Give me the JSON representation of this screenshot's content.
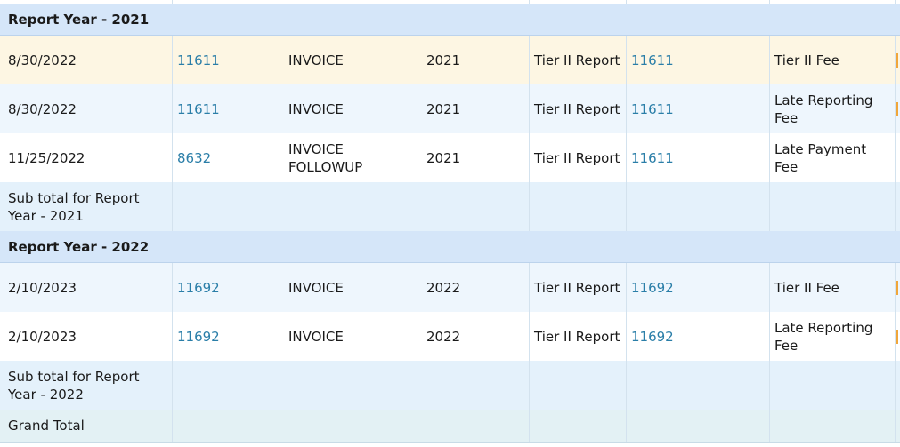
{
  "groups": [
    {
      "header": "Report Year - 2021",
      "rows": [
        {
          "date": "8/30/2022",
          "id": "11611",
          "type": "INVOICE",
          "year": "2021",
          "report": "Tier II Report",
          "ref": "11611",
          "fee": "Tier II Fee"
        },
        {
          "date": "8/30/2022",
          "id": "11611",
          "type": "INVOICE",
          "year": "2021",
          "report": "Tier II Report",
          "ref": "11611",
          "fee": "Late Reporting Fee"
        },
        {
          "date": "11/25/2022",
          "id": "8632",
          "type": "INVOICE FOLLOWUP",
          "year": "2021",
          "report": "Tier II Report",
          "ref": "11611",
          "fee": "Late Payment Fee"
        }
      ],
      "subtotal": "Sub total for Report Year - 2021"
    },
    {
      "header": "Report Year - 2022",
      "rows": [
        {
          "date": "2/10/2023",
          "id": "11692",
          "type": "INVOICE",
          "year": "2022",
          "report": "Tier II Report",
          "ref": "11692",
          "fee": "Tier II Fee"
        },
        {
          "date": "2/10/2023",
          "id": "11692",
          "type": "INVOICE",
          "year": "2022",
          "report": "Tier II Report",
          "ref": "11692",
          "fee": "Late Reporting Fee"
        }
      ],
      "subtotal": "Sub total for Report Year - 2022"
    }
  ],
  "grand_total": "Grand Total",
  "colors": {
    "link": "#2a7ea8",
    "group_header": "#d5e6f9",
    "highlight_row": "#fdf6e3"
  }
}
